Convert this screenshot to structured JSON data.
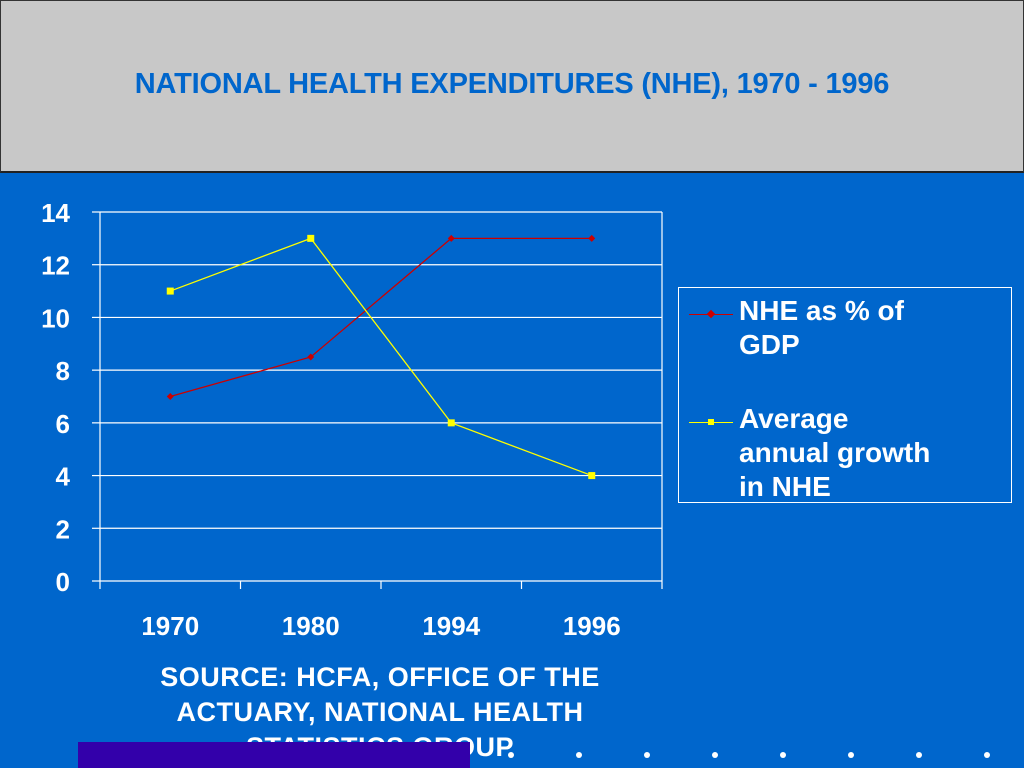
{
  "header": {
    "title": "NATIONAL HEALTH EXPENDITURES (NHE), 1970 - 1996"
  },
  "chart_data": {
    "type": "line",
    "categories": [
      "1970",
      "1980",
      "1994",
      "1996"
    ],
    "series": [
      {
        "name": "NHE as % of GDP",
        "values": [
          7,
          8.5,
          13,
          13
        ],
        "color": "#cc0000",
        "marker": "diamond"
      },
      {
        "name": "Average annual growth in NHE",
        "values": [
          11,
          13,
          6,
          4
        ],
        "color": "#ffff00",
        "marker": "square"
      }
    ],
    "ylim": [
      0,
      14
    ],
    "yticks": [
      "0",
      "2",
      "4",
      "6",
      "8",
      "10",
      "12",
      "14"
    ],
    "grid": true,
    "legend_position": "right"
  },
  "legend": {
    "items": [
      {
        "line1": "NHE as % of",
        "line2": "GDP",
        "line3": ""
      },
      {
        "line1": "Average",
        "line2": "annual growth",
        "line3": "in NHE"
      }
    ]
  },
  "source": {
    "line1": "SOURCE: HCFA, OFFICE OF THE",
    "line2": "ACTUARY, NATIONAL HEALTH",
    "line3": "STATISTICS GROUP"
  },
  "colors": {
    "background": "#0066cc",
    "header_bg": "#c8c8c8",
    "title": "#0066cc",
    "bottom_bar": "#3300aa"
  }
}
